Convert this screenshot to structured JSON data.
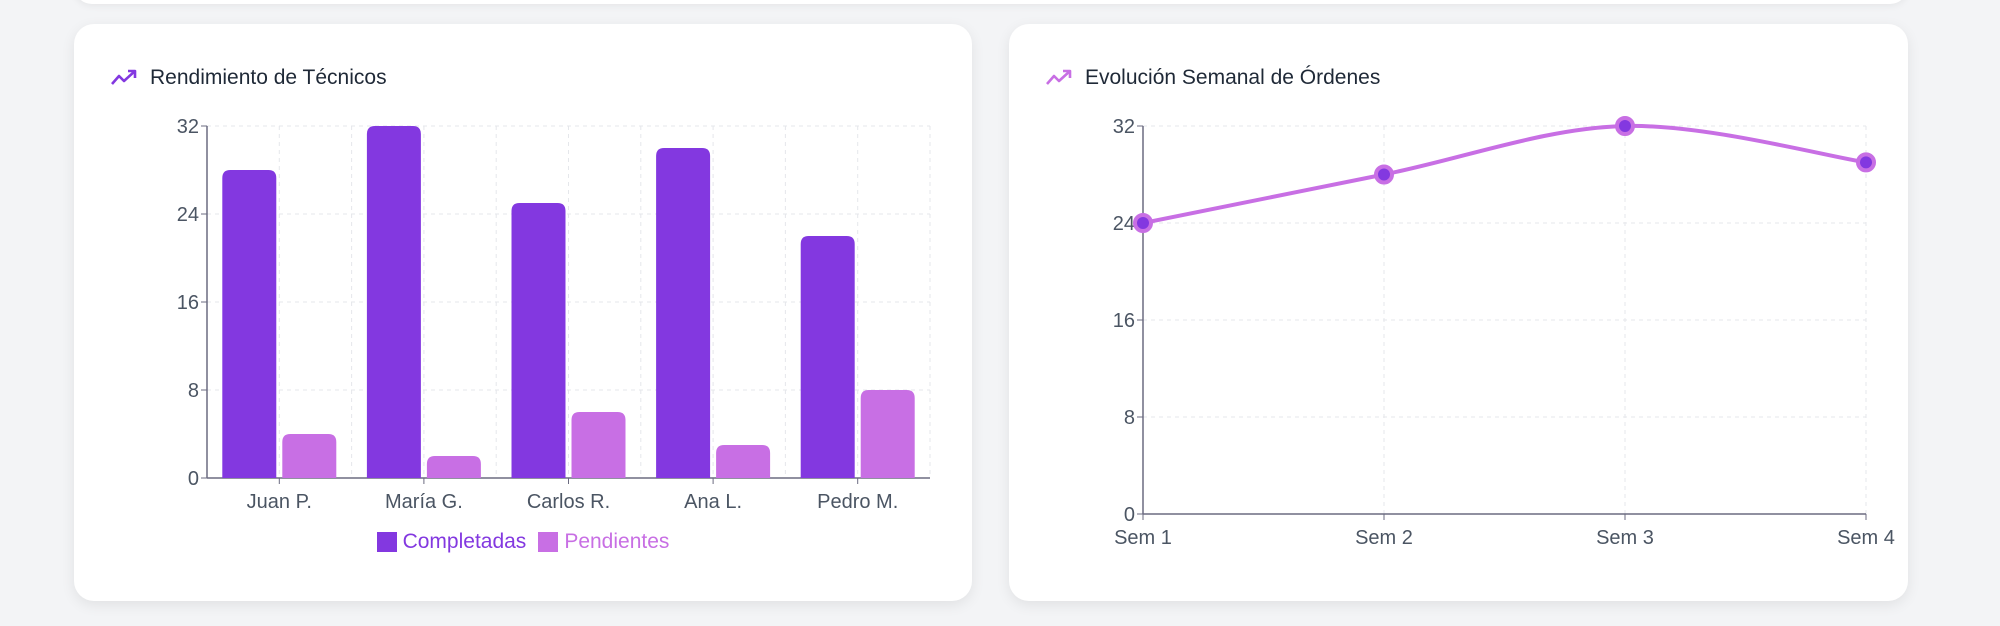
{
  "cards": [
    {
      "title": "Rendimiento de Técnicos",
      "icon": "trending-up-icon"
    },
    {
      "title": "Evolución Semanal de Órdenes",
      "icon": "trending-up-icon"
    }
  ],
  "colors": {
    "completadas": "#8338e0",
    "pendientes": "#c86fe4",
    "line": "#c86fe4",
    "dot": "#8338e0",
    "axis": "#6b6b80",
    "grid": "#e5e7eb"
  },
  "chart_data": [
    {
      "type": "bar",
      "title": "",
      "categories": [
        "Juan P.",
        "María G.",
        "Carlos R.",
        "Ana L.",
        "Pedro M."
      ],
      "series": [
        {
          "name": "Completadas",
          "values": [
            28,
            32,
            25,
            30,
            22
          ]
        },
        {
          "name": "Pendientes",
          "values": [
            4,
            2,
            6,
            3,
            8
          ]
        }
      ],
      "yticks": [
        0,
        8,
        16,
        24,
        32
      ],
      "ylim": [
        0,
        32
      ],
      "grid": true,
      "legend": "bottom"
    },
    {
      "type": "line",
      "title": "",
      "categories": [
        "Sem 1",
        "Sem 2",
        "Sem 3",
        "Sem 4"
      ],
      "series": [
        {
          "values": [
            24,
            28,
            32,
            29
          ]
        }
      ],
      "yticks": [
        0,
        8,
        16,
        24,
        32
      ],
      "ylim": [
        0,
        32
      ],
      "grid": true,
      "curve": "smooth"
    }
  ]
}
